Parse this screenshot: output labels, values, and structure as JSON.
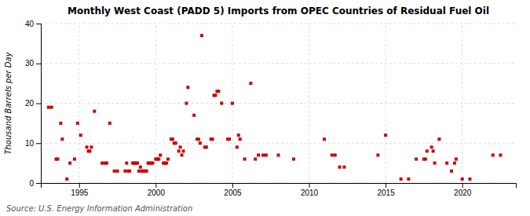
{
  "chart_data": {
    "type": "scatter",
    "title": "Monthly West Coast (PADD 5) Imports from OPEC Countries of Residual Fuel Oil",
    "ylabel": "Thousand Barrels per Day",
    "annotation": "Source: U.S. Energy Information Administration",
    "color": "#cc0000",
    "marker": "square",
    "grid": true,
    "xlim": [
      1992.5,
      2023.5
    ],
    "xticks": [
      1995,
      2000,
      2005,
      2010,
      2015,
      2020
    ],
    "ylim": [
      0,
      40
    ],
    "yticks": [
      0,
      10,
      20,
      30,
      40
    ],
    "x": [
      1993.0,
      1993.2,
      1993.5,
      1993.6,
      1993.8,
      1993.9,
      1994.2,
      1994.4,
      1994.7,
      1994.9,
      1995.1,
      1995.5,
      1995.6,
      1995.7,
      1995.8,
      1996.0,
      1996.5,
      1996.7,
      1996.8,
      1997.0,
      1997.3,
      1997.5,
      1998.0,
      1998.1,
      1998.2,
      1998.3,
      1998.5,
      1998.6,
      1998.7,
      1998.8,
      1998.9,
      1999.0,
      1999.1,
      1999.2,
      1999.3,
      1999.4,
      1999.5,
      1999.6,
      1999.7,
      1999.8,
      2000.0,
      2000.1,
      2000.2,
      2000.3,
      2000.5,
      2000.6,
      2000.7,
      2000.8,
      2001.0,
      2001.1,
      2001.2,
      2001.3,
      2001.5,
      2001.6,
      2001.7,
      2001.8,
      2002.0,
      2002.1,
      2002.5,
      2002.7,
      2002.8,
      2002.9,
      2003.0,
      2003.2,
      2003.3,
      2003.6,
      2003.7,
      2003.8,
      2003.9,
      2004.0,
      2004.1,
      2004.3,
      2004.7,
      2004.8,
      2005.0,
      2005.3,
      2005.4,
      2005.5,
      2005.8,
      2006.2,
      2006.5,
      2006.7,
      2007.0,
      2007.2,
      2008.0,
      2009.0,
      2011.0,
      2011.5,
      2011.7,
      2012.0,
      2012.3,
      2014.5,
      2015.0,
      2016.0,
      2016.5,
      2017.0,
      2017.5,
      2017.6,
      2017.7,
      2018.0,
      2018.1,
      2018.2,
      2018.5,
      2019.0,
      2019.3,
      2019.5,
      2019.6,
      2020.0,
      2020.5,
      2022.0,
      2022.5
    ],
    "values": [
      19,
      19,
      6,
      6,
      15,
      11,
      1,
      5,
      6,
      15,
      12,
      9,
      8,
      8,
      9,
      18,
      5,
      5,
      5,
      15,
      3,
      3,
      3,
      5,
      3,
      3,
      5,
      5,
      5,
      5,
      3,
      4,
      3,
      3,
      3,
      3,
      5,
      5,
      5,
      5,
      6,
      6,
      6,
      7,
      5,
      5,
      5,
      6,
      11,
      11,
      10,
      10,
      8,
      9,
      7,
      8,
      20,
      24,
      17,
      11,
      11,
      10,
      37,
      9,
      9,
      11,
      11,
      22,
      22,
      23,
      23,
      20,
      11,
      11,
      20,
      9,
      12,
      11,
      6,
      25,
      6,
      7,
      7,
      7,
      7,
      6,
      11,
      7,
      7,
      4,
      4,
      7,
      12,
      1,
      1,
      6,
      6,
      6,
      8,
      9,
      8,
      5,
      11,
      5,
      3,
      5,
      6,
      1,
      1,
      7,
      7
    ]
  }
}
